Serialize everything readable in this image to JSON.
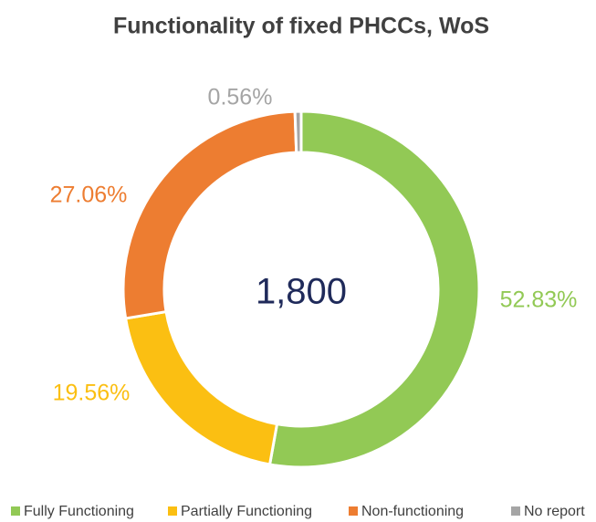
{
  "chart_data": {
    "type": "donut",
    "title": "Functionality of fixed PHCCs, WoS",
    "center_text": "1,800",
    "categories": [
      "Fully Functioning",
      "Partially Functioning",
      "Non-functioning",
      "No report"
    ],
    "values": [
      52.83,
      19.56,
      27.06,
      0.56
    ],
    "value_labels": [
      "52.83%",
      "19.56%",
      "27.06%",
      "0.56%"
    ],
    "colors": [
      "#92c955",
      "#fbbf12",
      "#ed7d31",
      "#a5a5a5"
    ],
    "legend": "bottom"
  }
}
